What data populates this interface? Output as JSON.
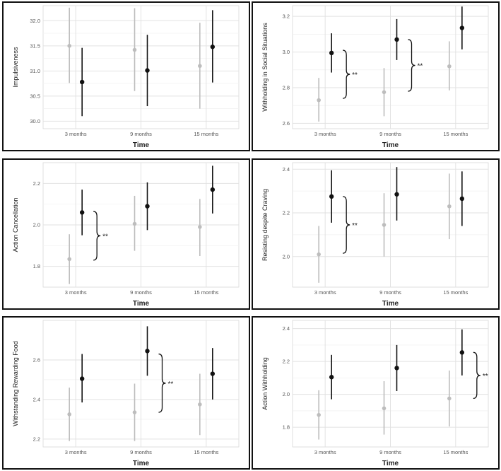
{
  "colors": {
    "group_light": "#bdbdbd",
    "group_dark": "#111111"
  },
  "chart_data": [
    {
      "type": "scatter",
      "xlabel": "Time",
      "ylabel": "Impulsiveness",
      "categories": [
        "3 months",
        "9 months",
        "15 months"
      ],
      "ylim": [
        29.85,
        32.3
      ],
      "yticks": [
        30.0,
        30.5,
        31.0,
        31.5,
        32.0
      ],
      "ytick_labels": [
        "30.0",
        "30.5",
        "31.0",
        "31.5",
        "32.0"
      ],
      "series": [
        {
          "color": "#bdbdbd",
          "values": [
            31.5,
            31.42,
            31.1
          ],
          "lower": [
            30.76,
            30.6,
            30.25
          ],
          "upper": [
            32.26,
            32.25,
            31.96
          ]
        },
        {
          "color": "#111111",
          "values": [
            30.78,
            31.01,
            31.48
          ],
          "lower": [
            30.1,
            30.3,
            30.77
          ],
          "upper": [
            31.46,
            31.72,
            32.21
          ]
        }
      ],
      "significance": []
    },
    {
      "type": "scatter",
      "xlabel": "Time",
      "ylabel": "Withholding in Social Situations",
      "categories": [
        "3 months",
        "9 months",
        "15 months"
      ],
      "ylim": [
        2.57,
        3.26
      ],
      "yticks": [
        2.6,
        2.8,
        3.0,
        3.2
      ],
      "ytick_labels": [
        "2.6",
        "2.8",
        "3.0",
        "3.2"
      ],
      "series": [
        {
          "color": "#bdbdbd",
          "values": [
            2.73,
            2.775,
            2.92
          ],
          "lower": [
            2.61,
            2.64,
            2.785
          ],
          "upper": [
            2.855,
            2.91,
            3.06
          ]
        },
        {
          "color": "#111111",
          "values": [
            2.995,
            3.07,
            3.135
          ],
          "lower": [
            2.885,
            2.955,
            3.015
          ],
          "upper": [
            3.105,
            3.185,
            3.255
          ]
        }
      ],
      "significance": [
        {
          "category": 0,
          "low": 2.74,
          "high": 3.01,
          "label": "**"
        },
        {
          "category": 1,
          "low": 2.78,
          "high": 3.07,
          "label": "**"
        }
      ]
    },
    {
      "type": "scatter",
      "xlabel": "Time",
      "ylabel": "Action Cancellation",
      "categories": [
        "3 months",
        "9 months",
        "15 months"
      ],
      "ylim": [
        1.7,
        2.3
      ],
      "yticks": [
        1.8,
        2.0,
        2.2
      ],
      "ytick_labels": [
        "1.8",
        "2.0",
        "2.2"
      ],
      "series": [
        {
          "color": "#bdbdbd",
          "values": [
            1.835,
            2.005,
            1.99
          ],
          "lower": [
            1.715,
            1.875,
            1.85
          ],
          "upper": [
            1.955,
            2.14,
            2.125
          ]
        },
        {
          "color": "#111111",
          "values": [
            2.06,
            2.09,
            2.17
          ],
          "lower": [
            1.95,
            1.975,
            2.055
          ],
          "upper": [
            2.17,
            2.205,
            2.285
          ]
        }
      ],
      "significance": [
        {
          "category": 0,
          "low": 1.83,
          "high": 2.065,
          "label": "**"
        }
      ]
    },
    {
      "type": "scatter",
      "xlabel": "Time",
      "ylabel": "Resisting despite Craving",
      "categories": [
        "3 months",
        "9 months",
        "15 months"
      ],
      "ylim": [
        1.86,
        2.43
      ],
      "yticks": [
        2.0,
        2.2,
        2.4
      ],
      "ytick_labels": [
        "2.0",
        "2.2",
        "2.4"
      ],
      "series": [
        {
          "color": "#bdbdbd",
          "values": [
            2.01,
            2.145,
            2.23
          ],
          "lower": [
            1.88,
            2.0,
            2.08
          ],
          "upper": [
            2.14,
            2.29,
            2.38
          ]
        },
        {
          "color": "#111111",
          "values": [
            2.275,
            2.285,
            2.265
          ],
          "lower": [
            2.155,
            2.165,
            2.14
          ],
          "upper": [
            2.395,
            2.41,
            2.39
          ]
        }
      ],
      "significance": [
        {
          "category": 0,
          "low": 2.015,
          "high": 2.275,
          "label": "**"
        }
      ]
    },
    {
      "type": "scatter",
      "xlabel": "Time",
      "ylabel": "Withstanding Rewarding Food",
      "categories": [
        "3 months",
        "9 months",
        "15 months"
      ],
      "ylim": [
        2.16,
        2.8
      ],
      "yticks": [
        2.2,
        2.4,
        2.6
      ],
      "ytick_labels": [
        "2.2",
        "2.4",
        "2.6"
      ],
      "series": [
        {
          "color": "#bdbdbd",
          "values": [
            2.325,
            2.335,
            2.375
          ],
          "lower": [
            2.19,
            2.19,
            2.22
          ],
          "upper": [
            2.46,
            2.48,
            2.53
          ]
        },
        {
          "color": "#111111",
          "values": [
            2.505,
            2.645,
            2.53
          ],
          "lower": [
            2.385,
            2.52,
            2.4
          ],
          "upper": [
            2.63,
            2.77,
            2.66
          ]
        }
      ],
      "significance": [
        {
          "category": 1,
          "low": 2.335,
          "high": 2.63,
          "label": "**"
        }
      ]
    },
    {
      "type": "scatter",
      "xlabel": "Time",
      "ylabel": "Action Withholding",
      "categories": [
        "3 months",
        "9 months",
        "15 months"
      ],
      "ylim": [
        1.68,
        2.45
      ],
      "yticks": [
        1.8,
        2.0,
        2.2,
        2.4
      ],
      "ytick_labels": [
        "1.8",
        "2.0",
        "2.2",
        "2.4"
      ],
      "series": [
        {
          "color": "#bdbdbd",
          "values": [
            1.875,
            1.915,
            1.975
          ],
          "lower": [
            1.725,
            1.755,
            1.805
          ],
          "upper": [
            2.025,
            2.08,
            2.145
          ]
        },
        {
          "color": "#111111",
          "values": [
            2.105,
            2.16,
            2.255
          ],
          "lower": [
            1.97,
            2.02,
            2.115
          ],
          "upper": [
            2.24,
            2.3,
            2.395
          ]
        }
      ],
      "significance": [
        {
          "category": 2,
          "low": 1.975,
          "high": 2.255,
          "label": "**"
        }
      ]
    }
  ]
}
